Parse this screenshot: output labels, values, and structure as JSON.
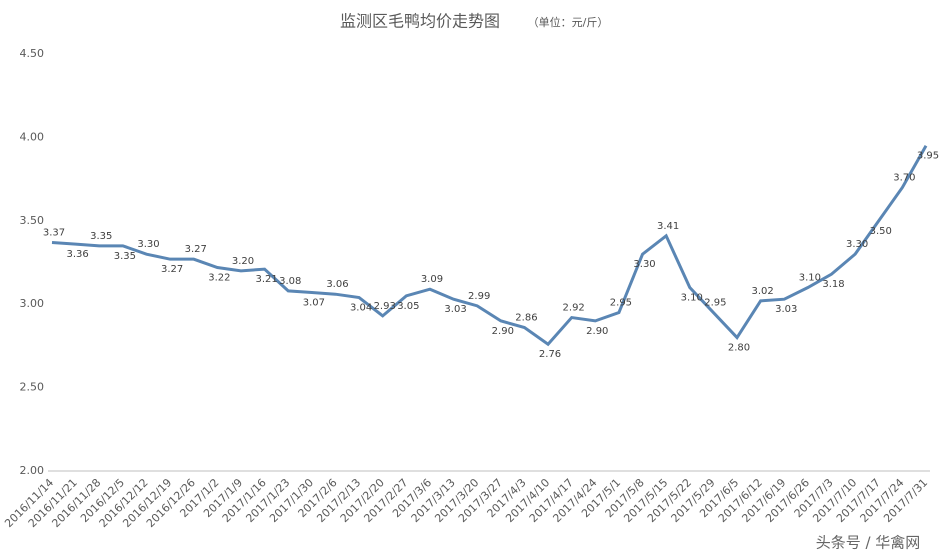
{
  "chart_data": {
    "type": "line",
    "title": "监测区毛鸭均价走势图",
    "subtitle": "（单位：元/斤）",
    "watermark": "头条号 / 华禽网",
    "categories": [
      "2016/11/14",
      "2016/11/21",
      "2016/11/28",
      "2016/12/5",
      "2016/12/12",
      "2016/12/19",
      "2016/12/26",
      "2017/1/2",
      "2017/1/9",
      "2017/1/16",
      "2017/1/23",
      "2017/1/30",
      "2017/2/6",
      "2017/2/13",
      "2017/2/20",
      "2017/2/27",
      "2017/3/6",
      "2017/3/13",
      "2017/3/20",
      "2017/3/27",
      "2017/4/3",
      "2017/4/10",
      "2017/4/17",
      "2017/4/24",
      "2017/5/1",
      "2017/5/8",
      "2017/5/15",
      "2017/5/22",
      "2017/5/29",
      "2017/6/5",
      "2017/6/12",
      "2017/6/19",
      "2017/6/26",
      "2017/7/3",
      "2017/7/10",
      "2017/7/17",
      "2017/7/24",
      "2017/7/31"
    ],
    "values": [
      3.37,
      3.36,
      3.35,
      3.35,
      3.3,
      3.27,
      3.27,
      3.22,
      3.2,
      3.21,
      3.08,
      3.07,
      3.06,
      3.04,
      2.93,
      3.05,
      3.09,
      3.03,
      2.99,
      2.9,
      2.86,
      2.76,
      2.92,
      2.9,
      2.95,
      3.3,
      3.41,
      3.1,
      2.95,
      2.8,
      3.02,
      3.03,
      3.1,
      3.18,
      3.3,
      3.5,
      3.7,
      3.95
    ],
    "value_labels": [
      "3.37",
      "3.36",
      "3.35",
      "3.35",
      "3.30",
      "3.27",
      "3.27",
      "3.22",
      "3.20",
      "3.21",
      "3.08",
      "3.07",
      "3.06",
      "3.04",
      "2.93",
      "3.05",
      "3.09",
      "3.03",
      "2.99",
      "2.90",
      "2.86",
      "2.76",
      "2.92",
      "2.90",
      "2.95",
      "3.30",
      "3.41",
      "3.10",
      "2.95",
      "2.80",
      "3.02",
      "3.03",
      "3.10",
      "3.18",
      "3.30",
      "3.50",
      "3.70",
      "3.95"
    ],
    "color": "#5a86b4",
    "ylim": [
      2.0,
      4.5
    ],
    "yticks": [
      {
        "value": 2.0,
        "label": "2.00"
      },
      {
        "value": 2.5,
        "label": "2.50"
      },
      {
        "value": 3.0,
        "label": "3.00"
      },
      {
        "value": 3.5,
        "label": "3.50"
      },
      {
        "value": 4.0,
        "label": "4.00"
      },
      {
        "value": 4.5,
        "label": "4.50"
      }
    ],
    "grid": false
  }
}
